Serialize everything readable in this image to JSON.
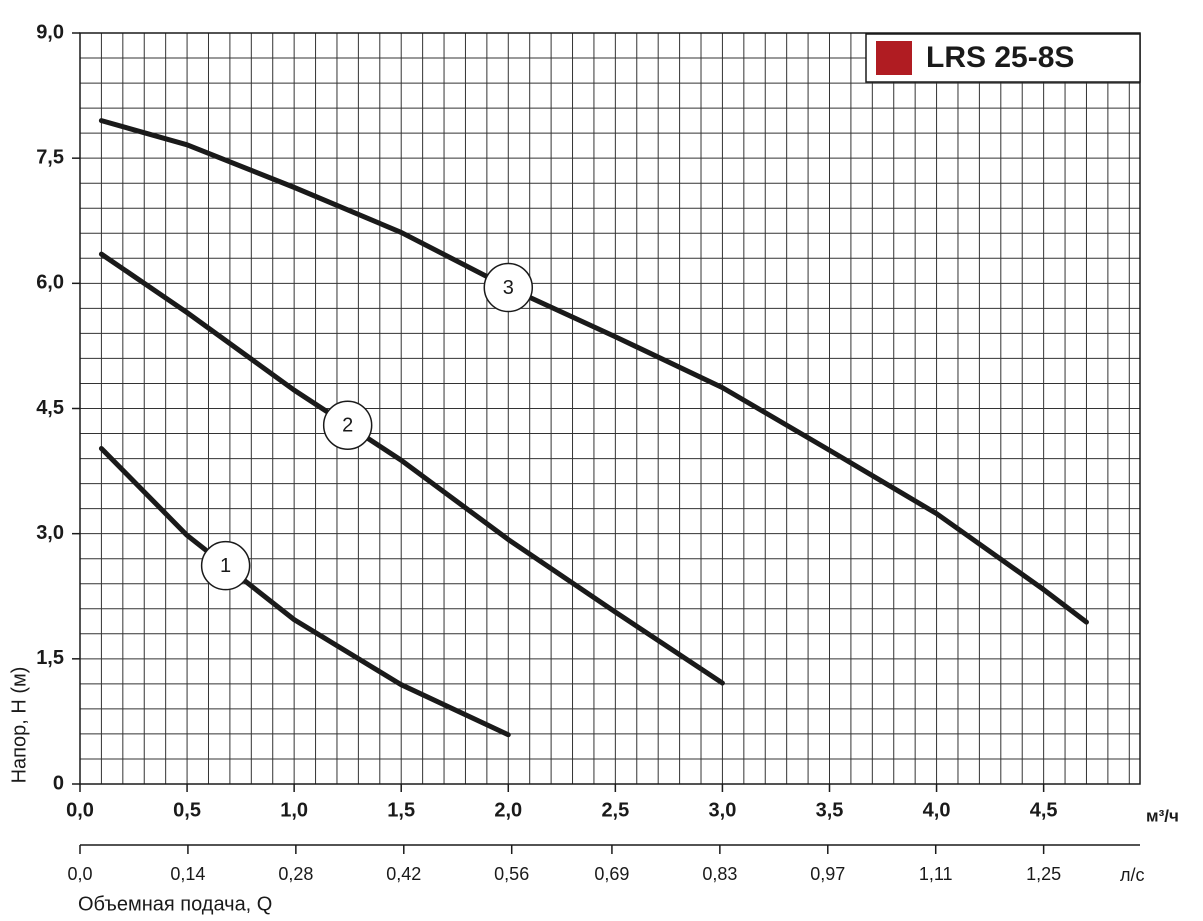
{
  "chart_data": {
    "type": "line",
    "title": "LRS 25-8S",
    "title_marker_color": "#b01c22",
    "ylabel": "Напор, H (м)",
    "xlabel": "Объемная подача, Q",
    "xunit": "м³/ч",
    "x2unit": "л/с",
    "xlim": [
      0,
      4.95
    ],
    "ylim": [
      0,
      9
    ],
    "x2lim": [
      0,
      1.375
    ],
    "xticks": [
      {
        "value": 0,
        "label": "0,0"
      },
      {
        "value": 0.5,
        "label": "0,5"
      },
      {
        "value": 1,
        "label": "1,0"
      },
      {
        "value": 1.5,
        "label": "1,5"
      },
      {
        "value": 2,
        "label": "2,0"
      },
      {
        "value": 2.5,
        "label": "2,5"
      },
      {
        "value": 3,
        "label": "3,0"
      },
      {
        "value": 3.5,
        "label": "3,5"
      },
      {
        "value": 4,
        "label": "4,0"
      },
      {
        "value": 4.5,
        "label": "4,5"
      }
    ],
    "yticks": [
      {
        "value": 0,
        "label": "0"
      },
      {
        "value": 1.5,
        "label": "1,5"
      },
      {
        "value": 3,
        "label": "3,0"
      },
      {
        "value": 4.5,
        "label": "4,5"
      },
      {
        "value": 6,
        "label": "6,0"
      },
      {
        "value": 7.5,
        "label": "7,5"
      },
      {
        "value": 9,
        "label": "9,0"
      }
    ],
    "x2ticks": [
      {
        "value": 0,
        "label": "0,0"
      },
      {
        "value": 0.14,
        "label": "0,14"
      },
      {
        "value": 0.28,
        "label": "0,28"
      },
      {
        "value": 0.42,
        "label": "0,42"
      },
      {
        "value": 0.56,
        "label": "0,56"
      },
      {
        "value": 0.69,
        "label": "0,69"
      },
      {
        "value": 0.83,
        "label": "0,83"
      },
      {
        "value": 0.97,
        "label": "0,97"
      },
      {
        "value": 1.11,
        "label": "1,11"
      },
      {
        "value": 1.25,
        "label": "1,25"
      }
    ],
    "x_minor_ticks": [
      0.1,
      0.2,
      0.3,
      0.4,
      0.6,
      0.7,
      0.8,
      0.9,
      1.1,
      1.2,
      1.3,
      1.4,
      1.6,
      1.7,
      1.8,
      1.9,
      2.1,
      2.2,
      2.3,
      2.4,
      2.6,
      2.7,
      2.8,
      2.9,
      3.1,
      3.2,
      3.3,
      3.4,
      3.6,
      3.7,
      3.8,
      3.9,
      4.1,
      4.2,
      4.3,
      4.4,
      4.6,
      4.7,
      4.8,
      4.9
    ],
    "y_minor_ticks": [
      0.3,
      0.6,
      0.9,
      1.2,
      1.8,
      2.1,
      2.4,
      2.7,
      3.3,
      3.6,
      3.9,
      4.2,
      4.8,
      5.1,
      5.4,
      5.7,
      6.3,
      6.6,
      6.9,
      7.2,
      7.8,
      8.1,
      8.4,
      8.7
    ],
    "grid": true,
    "series": [
      {
        "name": "1",
        "color": "#1a1a1a",
        "x": [
          0.1,
          0.5,
          1.0,
          1.5,
          2.0
        ],
        "values": [
          4.02,
          2.98,
          1.97,
          1.19,
          0.59
        ]
      },
      {
        "name": "2",
        "color": "#1a1a1a",
        "x": [
          0.1,
          0.5,
          1.0,
          1.5,
          2.0,
          2.5,
          3.0
        ],
        "values": [
          6.35,
          5.65,
          4.72,
          3.88,
          2.93,
          2.06,
          1.21
        ]
      },
      {
        "name": "3",
        "color": "#1a1a1a",
        "x": [
          0.1,
          0.5,
          1.0,
          1.5,
          2.0,
          2.5,
          3.0,
          3.5,
          4.0,
          4.5,
          4.7
        ],
        "values": [
          7.95,
          7.66,
          7.15,
          6.61,
          5.95,
          5.36,
          4.75,
          4.0,
          3.24,
          2.33,
          1.94
        ]
      }
    ]
  }
}
